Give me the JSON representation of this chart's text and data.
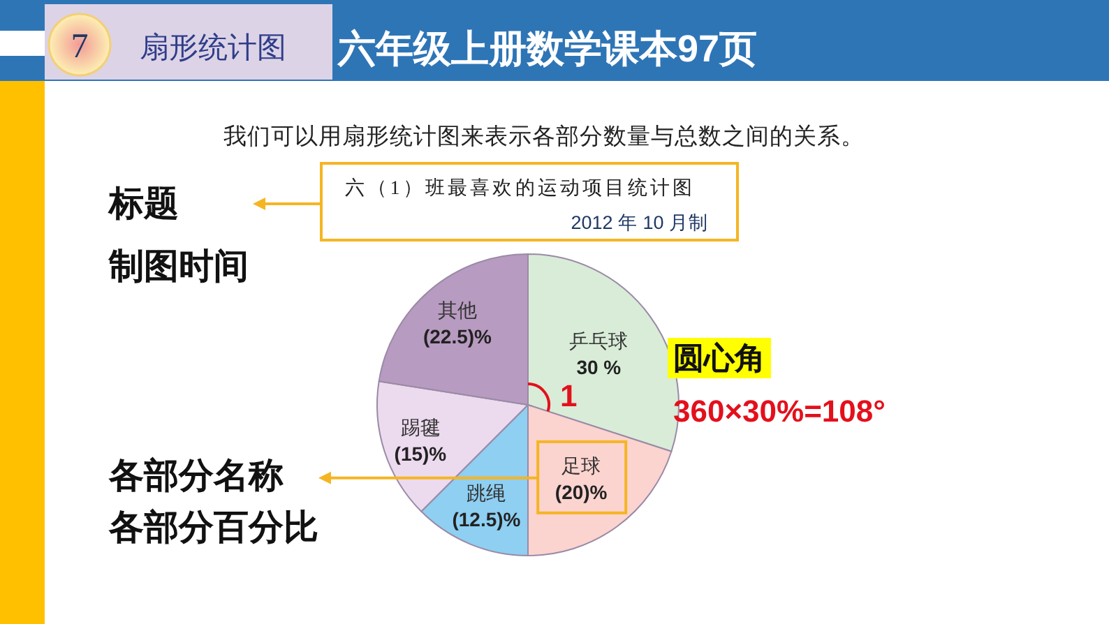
{
  "chart_data": {
    "type": "pie",
    "title": "六（1）班最喜欢的运动项目统计图",
    "subtitle": "2012 年 10 月制",
    "categories": [
      "乒乓球",
      "足球",
      "跳绳",
      "踢毽",
      "其他"
    ],
    "values": [
      30,
      20,
      12.5,
      15,
      22.5
    ],
    "colors": [
      "#d8ecd8",
      "#fbd3cf",
      "#8ecff2",
      "#ecdaee",
      "#b89bc0"
    ],
    "value_labels": [
      "30 %",
      "(20)%",
      "(12.5)%",
      "(15)%",
      "(22.5)%"
    ],
    "annotations": [
      "7",
      "扇形统计图",
      "六年级上册数学课本97页",
      "我们可以用扇形统计图来表示各部分数量与总数之间的关系。",
      "标题",
      "制图时间",
      "各部分名称",
      "各部分百分比",
      "1",
      "圆心角",
      "360×30%=108°"
    ]
  }
}
